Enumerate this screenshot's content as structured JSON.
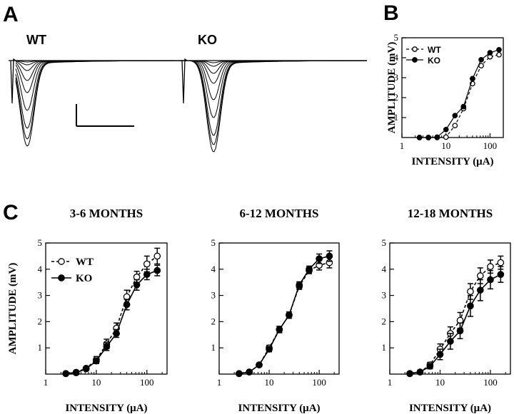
{
  "panels": {
    "a": "A",
    "b": "B",
    "c": "C"
  },
  "traces": {
    "wt_label": "WT",
    "ko_label": "KO"
  },
  "chart_data": [
    {
      "id": "B",
      "type": "line",
      "title": "",
      "xlabel": "INTENSITY (μA)",
      "ylabel": "AMPLITUDE (mV)",
      "xscale": "log",
      "xlim": [
        1,
        200
      ],
      "ylim": [
        0,
        5
      ],
      "xticks": [
        1,
        10,
        100
      ],
      "yticks": [
        1,
        2,
        3,
        4,
        5
      ],
      "x": [
        2.5,
        4,
        6.3,
        10,
        16,
        25,
        40,
        63,
        100,
        160
      ],
      "series": [
        {
          "name": "WT",
          "style": "dashed-open",
          "values": [
            0,
            0,
            0,
            0.02,
            0.6,
            1.45,
            2.7,
            3.6,
            4.05,
            4.15
          ]
        },
        {
          "name": "KO",
          "style": "solid-filled",
          "values": [
            0,
            0,
            0.02,
            0.4,
            1.1,
            1.55,
            2.95,
            3.9,
            4.25,
            4.4
          ]
        }
      ],
      "legend": "top-left"
    },
    {
      "id": "C1",
      "type": "line",
      "title": "3-6 MONTHS",
      "xlabel": "INTENSITY (μA)",
      "ylabel": "AMPLITUDE (mV)",
      "xscale": "log",
      "xlim": [
        1,
        250
      ],
      "ylim": [
        0,
        5
      ],
      "xticks": [
        1,
        10,
        100
      ],
      "yticks": [
        1,
        2,
        3,
        4,
        5
      ],
      "x": [
        2.5,
        4,
        6.3,
        10,
        16,
        25,
        40,
        63,
        100,
        160
      ],
      "series": [
        {
          "name": "WT",
          "style": "dashed-open",
          "values": [
            0.02,
            0.07,
            0.22,
            0.55,
            1.15,
            1.75,
            2.95,
            3.7,
            4.2,
            4.5
          ],
          "errors": [
            0.03,
            0.05,
            0.06,
            0.12,
            0.18,
            0.2,
            0.25,
            0.22,
            0.3,
            0.3
          ]
        },
        {
          "name": "KO",
          "style": "solid-filled",
          "values": [
            0.02,
            0.05,
            0.2,
            0.5,
            1.05,
            1.55,
            2.65,
            3.4,
            3.8,
            3.95
          ],
          "errors": [
            0.03,
            0.04,
            0.05,
            0.1,
            0.15,
            0.15,
            0.2,
            0.2,
            0.2,
            0.2
          ]
        }
      ],
      "legend": "top-left"
    },
    {
      "id": "C2",
      "type": "line",
      "title": "6-12 MONTHS",
      "xlabel": "INTENSITY (μA)",
      "ylabel": "",
      "xscale": "log",
      "xlim": [
        1,
        250
      ],
      "ylim": [
        0,
        5
      ],
      "xticks": [
        1,
        10,
        100
      ],
      "yticks": [
        1,
        2,
        3,
        4,
        5
      ],
      "x": [
        2.5,
        4,
        6.3,
        10,
        16,
        25,
        40,
        63,
        100,
        160
      ],
      "series": [
        {
          "name": "WT",
          "style": "dashed-open",
          "values": [
            0.02,
            0.08,
            0.35,
            1.0,
            1.7,
            2.25,
            3.35,
            3.95,
            4.15,
            4.25
          ],
          "errors": [
            0.02,
            0.03,
            0.06,
            0.1,
            0.12,
            0.12,
            0.12,
            0.12,
            0.18,
            0.2
          ]
        },
        {
          "name": "KO",
          "style": "solid-filled",
          "values": [
            0.02,
            0.08,
            0.35,
            0.95,
            1.7,
            2.25,
            3.4,
            4.0,
            4.4,
            4.5
          ],
          "errors": [
            0.02,
            0.03,
            0.06,
            0.1,
            0.12,
            0.12,
            0.12,
            0.12,
            0.18,
            0.2
          ]
        }
      ]
    },
    {
      "id": "C3",
      "type": "line",
      "title": "12-18 MONTHS",
      "xlabel": "INTENSITY (μA)",
      "ylabel": "",
      "xscale": "log",
      "xlim": [
        1,
        250
      ],
      "ylim": [
        0,
        5
      ],
      "xticks": [
        1,
        10,
        100
      ],
      "yticks": [
        1,
        2,
        3,
        4,
        5
      ],
      "x": [
        2.5,
        4,
        6.3,
        10,
        16,
        25,
        40,
        63,
        100,
        160
      ],
      "series": [
        {
          "name": "WT",
          "style": "dashed-open",
          "values": [
            0.02,
            0.08,
            0.35,
            0.95,
            1.55,
            2.05,
            3.15,
            3.75,
            4.1,
            4.25
          ],
          "errors": [
            0.02,
            0.05,
            0.1,
            0.2,
            0.25,
            0.3,
            0.3,
            0.3,
            0.25,
            0.25
          ]
        },
        {
          "name": "KO",
          "style": "solid-filled",
          "values": [
            0.02,
            0.08,
            0.3,
            0.75,
            1.25,
            1.65,
            2.6,
            3.2,
            3.6,
            3.8
          ],
          "errors": [
            0.02,
            0.05,
            0.1,
            0.2,
            0.3,
            0.3,
            0.4,
            0.4,
            0.35,
            0.3
          ]
        }
      ]
    }
  ]
}
